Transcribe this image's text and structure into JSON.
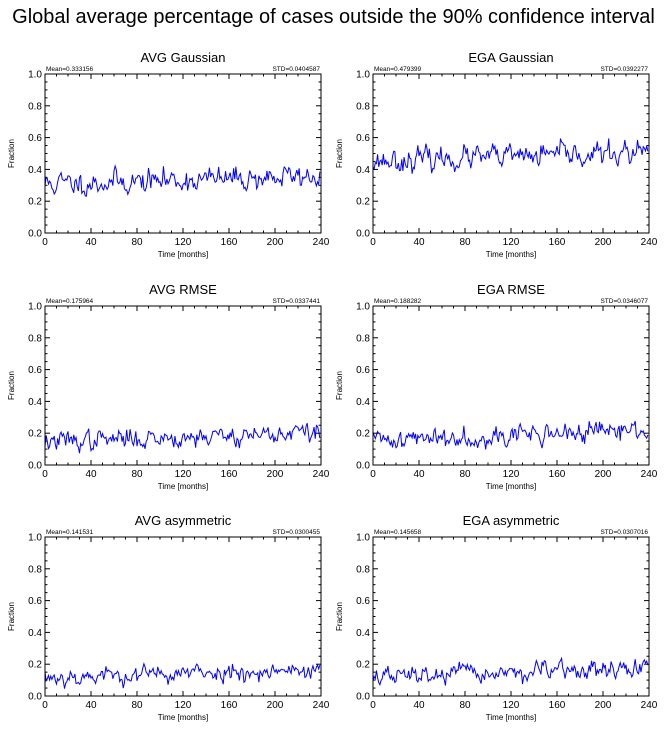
{
  "title": "Global average percentage of cases outside the 90% confidence interval",
  "chart_data": [
    {
      "type": "line",
      "title": "AVG Gaussian",
      "mean_label": "Mean=0.333156",
      "std_label": "STD=0.0404587",
      "xlabel": "Time [months]",
      "ylabel": "Fraction",
      "xlim": [
        0,
        240
      ],
      "ylim": [
        0,
        1
      ],
      "xticks": [
        "0",
        "40",
        "80",
        "120",
        "160",
        "200",
        "240"
      ],
      "yticks": [
        "0.0",
        "0.2",
        "0.4",
        "0.6",
        "0.8",
        "1.0"
      ],
      "series": [
        {
          "color": "#0000ff",
          "n": 240,
          "mean": 0.333,
          "std": 0.0405,
          "seed": 11,
          "trend": 0.05
        }
      ]
    },
    {
      "type": "line",
      "title": "EGA Gaussian",
      "mean_label": "Mean=0.479399",
      "std_label": "STD=0.0392277",
      "xlabel": "Time [months]",
      "ylabel": "Fraction",
      "xlim": [
        0,
        240
      ],
      "ylim": [
        0,
        1
      ],
      "xticks": [
        "0",
        "40",
        "80",
        "120",
        "160",
        "200",
        "240"
      ],
      "yticks": [
        "0.0",
        "0.2",
        "0.4",
        "0.6",
        "0.8",
        "1.0"
      ],
      "series": [
        {
          "color": "#0000ff",
          "n": 240,
          "mean": 0.479,
          "std": 0.0392,
          "seed": 23,
          "trend": 0.05
        }
      ]
    },
    {
      "type": "line",
      "title": "AVG RMSE",
      "mean_label": "Mean=0.175964",
      "std_label": "STD=0.0337441",
      "xlabel": "Time [months]",
      "ylabel": "Fraction",
      "xlim": [
        0,
        240
      ],
      "ylim": [
        0,
        1
      ],
      "xticks": [
        "0",
        "40",
        "80",
        "120",
        "160",
        "200",
        "240"
      ],
      "yticks": [
        "0.0",
        "0.2",
        "0.4",
        "0.6",
        "0.8",
        "1.0"
      ],
      "series": [
        {
          "color": "#0000ff",
          "n": 240,
          "mean": 0.176,
          "std": 0.0337,
          "seed": 37,
          "trend": 0.06
        }
      ]
    },
    {
      "type": "line",
      "title": "EGA RMSE",
      "mean_label": "Mean=0.188282",
      "std_label": "STD=0.0346077",
      "xlabel": "Time [months]",
      "ylabel": "Fraction",
      "xlim": [
        0,
        240
      ],
      "ylim": [
        0,
        1
      ],
      "xticks": [
        "0",
        "40",
        "80",
        "120",
        "160",
        "200",
        "240"
      ],
      "yticks": [
        "0.0",
        "0.2",
        "0.4",
        "0.6",
        "0.8",
        "1.0"
      ],
      "series": [
        {
          "color": "#0000ff",
          "n": 240,
          "mean": 0.188,
          "std": 0.0346,
          "seed": 41,
          "trend": 0.06
        }
      ]
    },
    {
      "type": "line",
      "title": "AVG asymmetric",
      "mean_label": "Mean=0.141531",
      "std_label": "STD=0.0300455",
      "xlabel": "Time [months]",
      "ylabel": "Fraction",
      "xlim": [
        0,
        240
      ],
      "ylim": [
        0,
        1
      ],
      "xticks": [
        "0",
        "40",
        "80",
        "120",
        "160",
        "200",
        "240"
      ],
      "yticks": [
        "0.0",
        "0.2",
        "0.4",
        "0.6",
        "0.8",
        "1.0"
      ],
      "series": [
        {
          "color": "#0000ff",
          "n": 240,
          "mean": 0.142,
          "std": 0.03,
          "seed": 53,
          "trend": 0.05
        }
      ]
    },
    {
      "type": "line",
      "title": "EGA asymmetric",
      "mean_label": "Mean=0.145658",
      "std_label": "STD=0.0307016",
      "xlabel": "Time [months]",
      "ylabel": "Fraction",
      "xlim": [
        0,
        240
      ],
      "ylim": [
        0,
        1
      ],
      "xticks": [
        "0",
        "40",
        "80",
        "120",
        "160",
        "200",
        "240"
      ],
      "yticks": [
        "0.0",
        "0.2",
        "0.4",
        "0.6",
        "0.8",
        "1.0"
      ],
      "series": [
        {
          "color": "#0000ff",
          "n": 240,
          "mean": 0.146,
          "std": 0.0307,
          "seed": 67,
          "trend": 0.05
        }
      ]
    }
  ]
}
